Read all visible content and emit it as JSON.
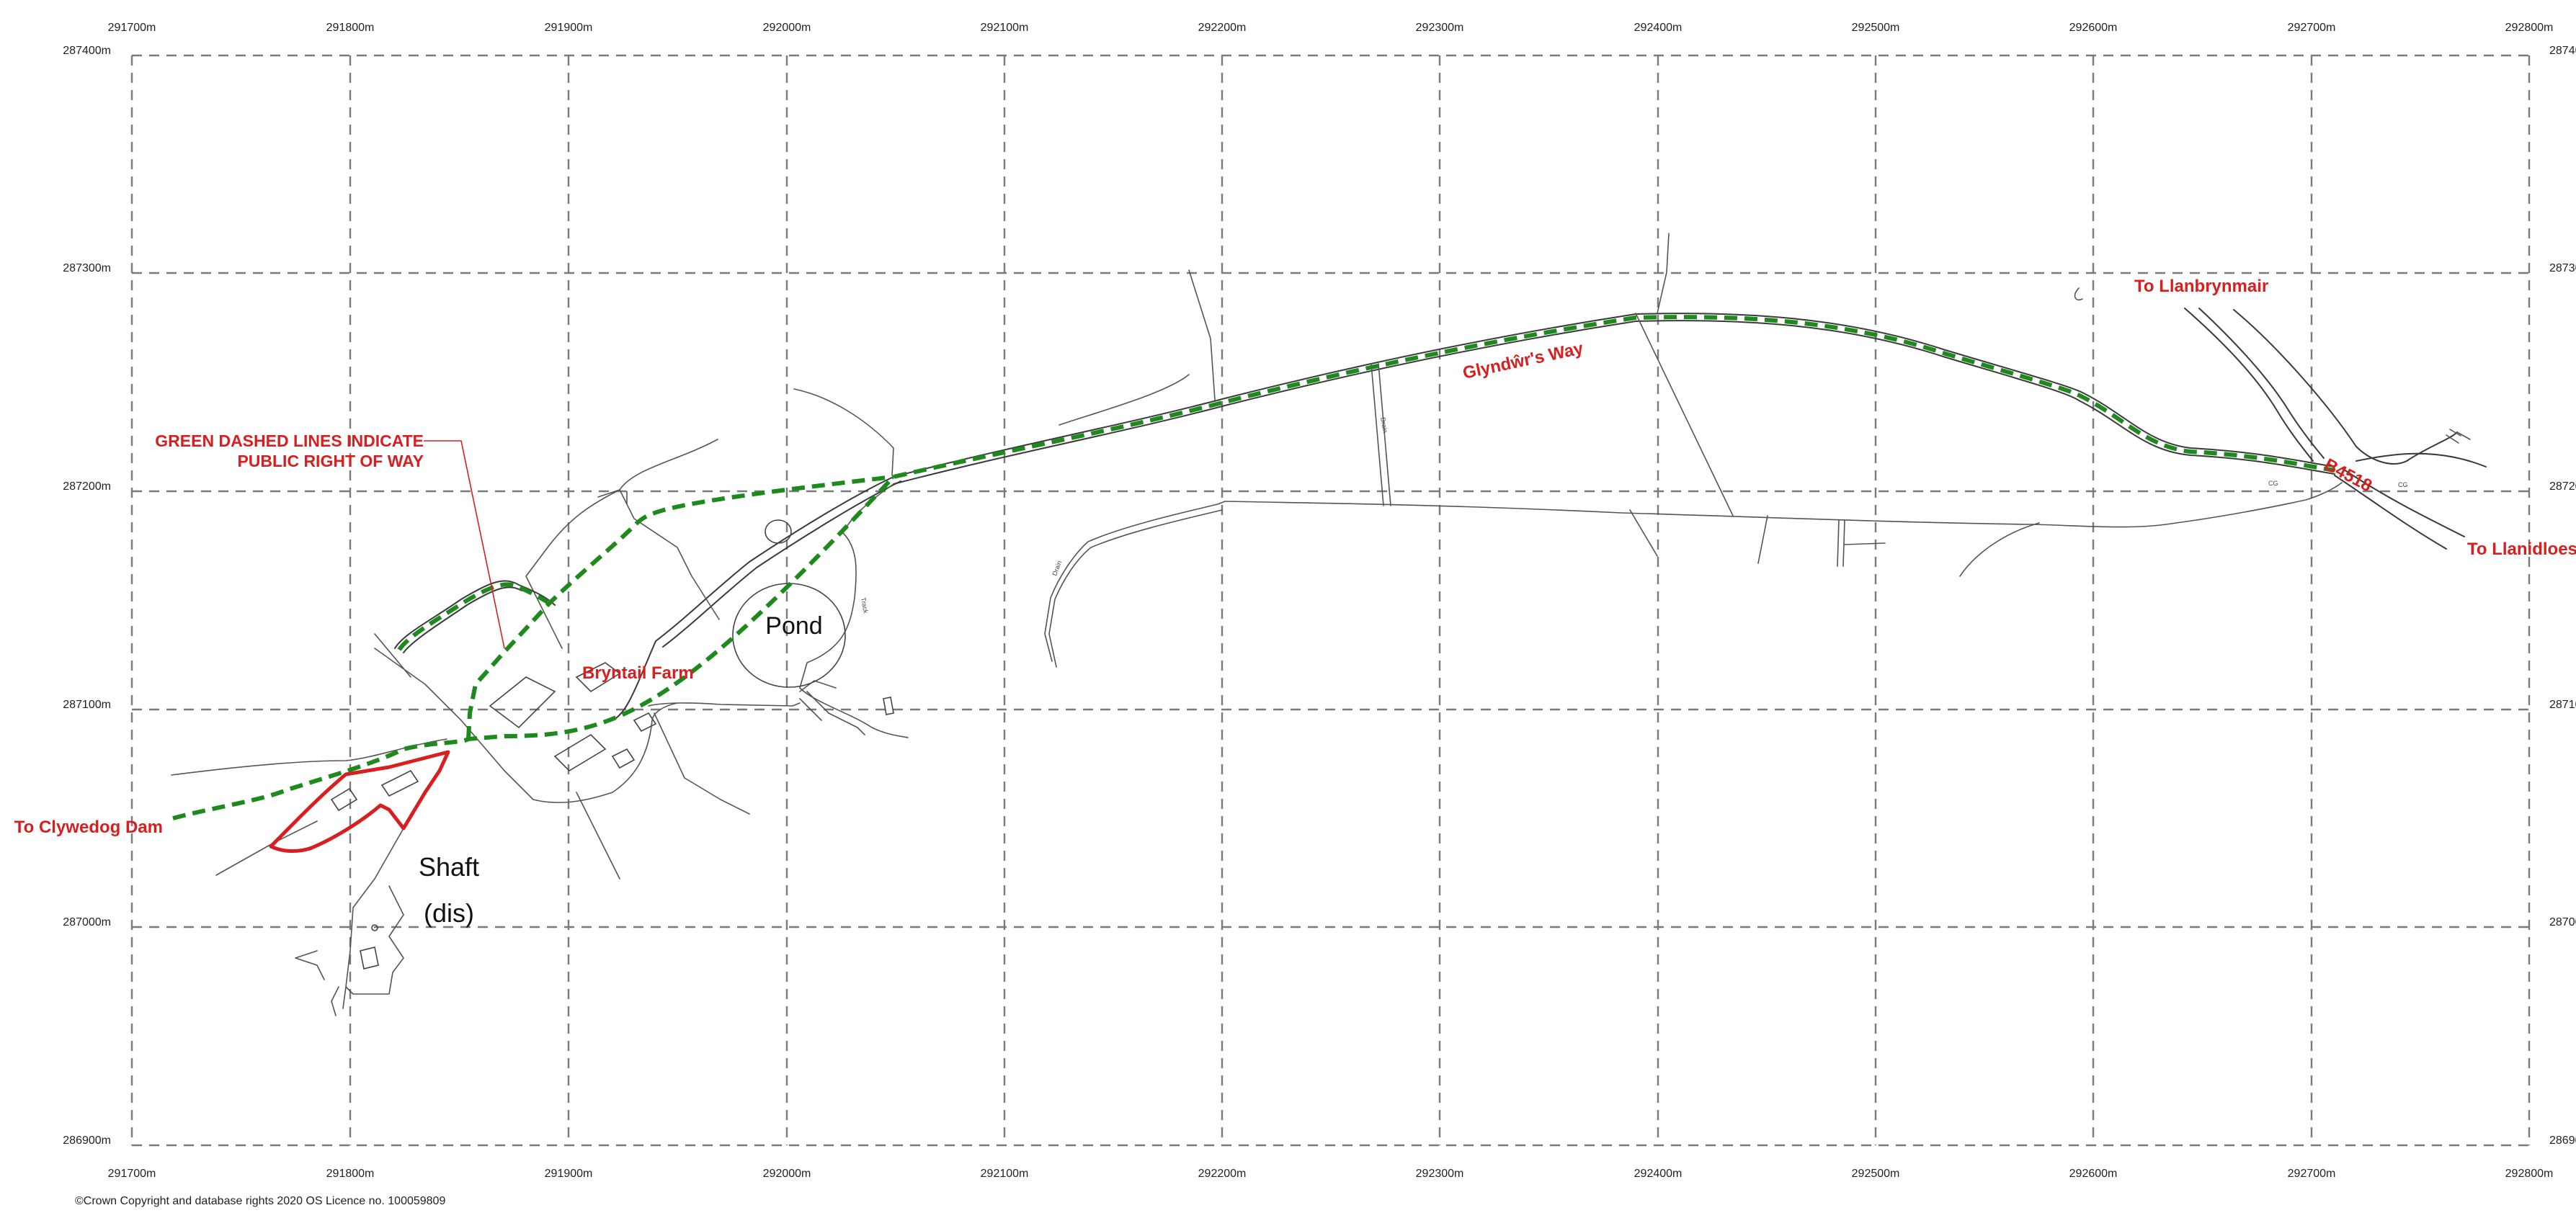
{
  "grid": {
    "eastings": [
      "291700m",
      "291800m",
      "291900m",
      "292000m",
      "292100m",
      "292200m",
      "292300m",
      "292400m",
      "292500m",
      "292600m",
      "292700m",
      "292800m"
    ],
    "northings": [
      "287400m",
      "287300m",
      "287200m",
      "287100m",
      "287000m",
      "286900m"
    ]
  },
  "labels": {
    "legend_line1": "GREEN DASHED LINES INDICATE",
    "legend_line2": "PUBLIC RIGHT OF WAY",
    "farm": "Bryntail Farm",
    "pond": "Pond",
    "shaft": "Shaft",
    "shaft_dis": "(dis)",
    "glyndwr": "Glyndŵr's Way",
    "llanbrynmair": "To Llanbrynmair",
    "llanidloes": "To Llanidloes",
    "clywedog": "To Clywedog Dam",
    "road_number": "B4518",
    "drain1": "Drain",
    "drain2": "Drain",
    "track": "Track",
    "cg1": "CG",
    "cg2": "CG"
  },
  "footer": {
    "copyright": "©Crown Copyright and database rights 2020 OS Licence no. 100059809"
  },
  "colors": {
    "right_of_way": "#1e8a1e",
    "site_boundary": "#d81e1e",
    "label_red": "#d81e1e",
    "grid": "#7a7a7a"
  }
}
